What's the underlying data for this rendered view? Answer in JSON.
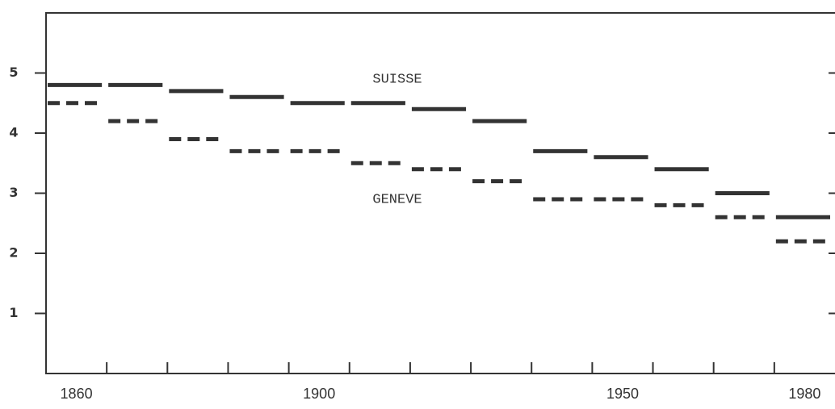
{
  "chart_data": {
    "type": "step",
    "categories": [
      "1860",
      null,
      null,
      null,
      "1900",
      null,
      null,
      null,
      null,
      "1950",
      null,
      null,
      "1980"
    ],
    "series": [
      {
        "name": "SUISSE",
        "color": "#333333",
        "style": "solid",
        "values": [
          4.8,
          4.8,
          4.7,
          4.6,
          4.5,
          4.5,
          4.4,
          4.2,
          3.7,
          3.6,
          3.4,
          3.0,
          2.6
        ]
      },
      {
        "name": "GENEVE",
        "color": "#333333",
        "style": "dashed",
        "values": [
          4.5,
          4.2,
          3.9,
          3.7,
          3.7,
          3.5,
          3.4,
          3.2,
          2.9,
          2.9,
          2.8,
          2.6,
          2.2
        ]
      }
    ],
    "ylim": [
      0,
      6
    ],
    "yticks": [
      1,
      2,
      3,
      4,
      5
    ]
  }
}
